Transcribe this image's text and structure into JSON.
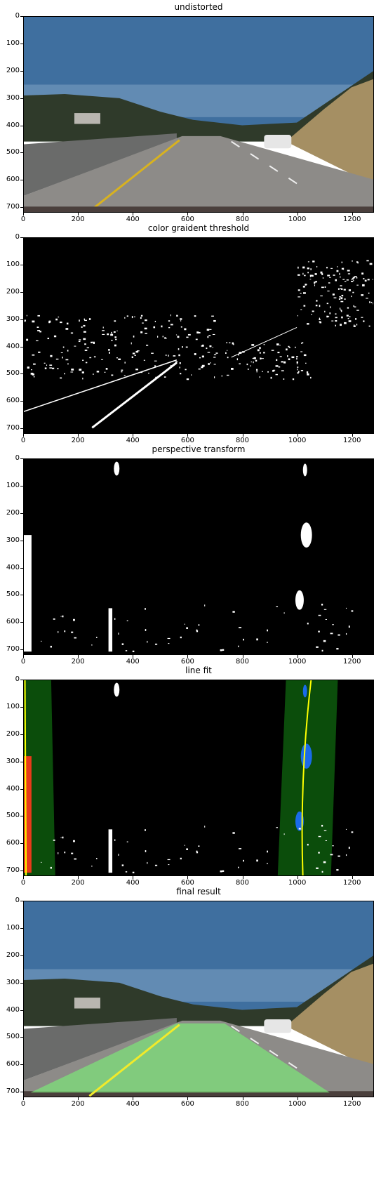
{
  "panels": [
    {
      "title": "undistorted",
      "kind": "road"
    },
    {
      "title": "color graident threshold",
      "kind": "threshold"
    },
    {
      "title": "perspective transform",
      "kind": "warped"
    },
    {
      "title": "line fit",
      "kind": "linefit"
    },
    {
      "title": "final result",
      "kind": "final"
    }
  ],
  "axes": {
    "xticks": [
      "0",
      "200",
      "400",
      "600",
      "800",
      "1000",
      "1200"
    ],
    "yticks": [
      "0",
      "100",
      "200",
      "300",
      "400",
      "500",
      "600",
      "700"
    ],
    "xlim": [
      0,
      1280
    ],
    "ylim": [
      720,
      0
    ]
  },
  "colors": {
    "sky": "#3f6f9f",
    "road": "#8d8b88",
    "lane_fill": "#7ee07a",
    "window": "#0b4d0b",
    "left_pixels": "#e83a1a",
    "right_pixels": "#1a6be8",
    "fit_line": "#ffff00"
  }
}
